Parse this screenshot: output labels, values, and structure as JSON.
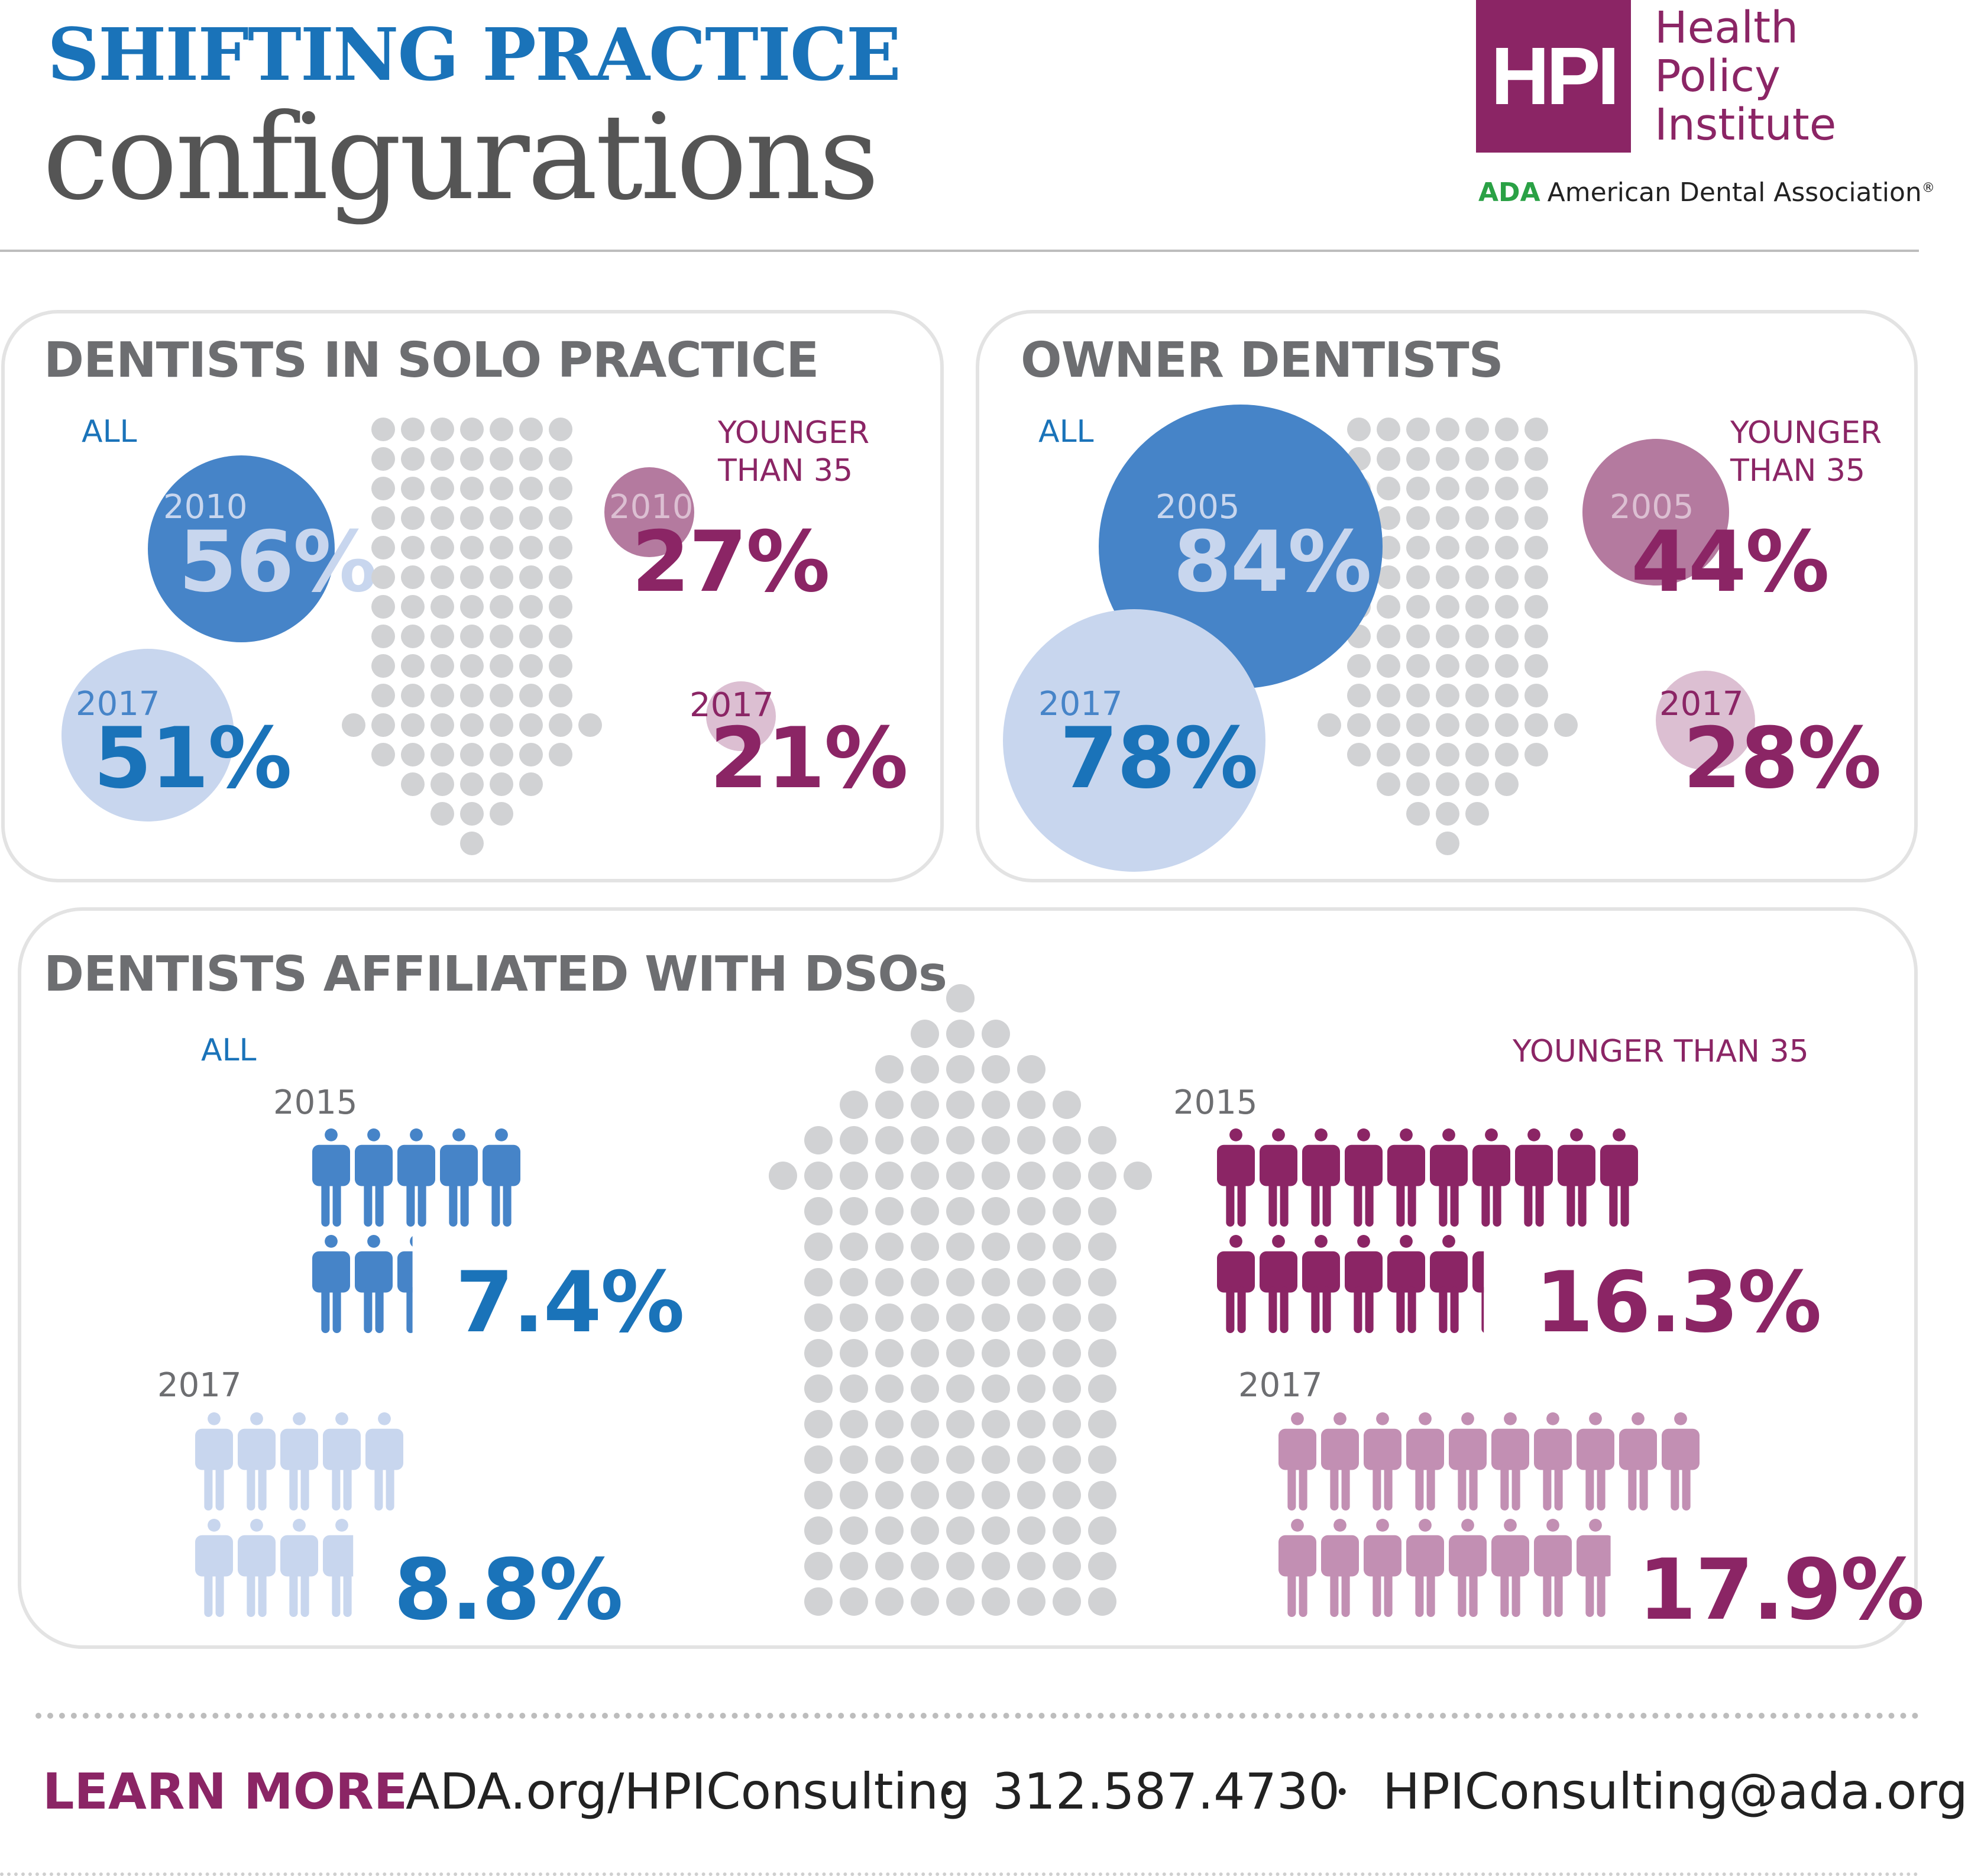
{
  "header": {
    "title_line1": "SHIFTING PRACTICE",
    "title_line2": "configurations",
    "logo": {
      "mark": "HPI",
      "name_lines": [
        "Health",
        "Policy",
        "Institute"
      ],
      "ada_mark": "ADA",
      "ada_name": "American Dental Association",
      "registered": "®"
    }
  },
  "colors": {
    "blue": "#1a73b9",
    "blue_dark": "#4684c8",
    "blue_light": "#c8d6ee",
    "purple": "#8b2565",
    "purple_mid": "#b47a9f",
    "purple_light": "#dcbfd2",
    "purple_icon_light": "#c28fb3",
    "grey_dot": "#d1d2d4"
  },
  "solo": {
    "title": "DENTISTS IN SOLO PRACTICE",
    "all_label": "ALL",
    "young_label_1": "YOUNGER",
    "young_label_2": "THAN 35",
    "all_a": {
      "year": "2010",
      "pct": "56%"
    },
    "all_b": {
      "year": "2017",
      "pct": "51%"
    },
    "young_a": {
      "year": "2010",
      "pct": "27%"
    },
    "young_b": {
      "year": "2017",
      "pct": "21%"
    }
  },
  "owner": {
    "title": "OWNER DENTISTS",
    "all_label": "ALL",
    "young_label_1": "YOUNGER",
    "young_label_2": "THAN 35",
    "all_a": {
      "year": "2005",
      "pct": "84%"
    },
    "all_b": {
      "year": "2017",
      "pct": "78%"
    },
    "young_a": {
      "year": "2005",
      "pct": "44%"
    },
    "young_b": {
      "year": "2017",
      "pct": "28%"
    }
  },
  "dso": {
    "title": "DENTISTS AFFILIATED WITH DSOs",
    "all_label": "ALL",
    "young_label": "YOUNGER THAN 35",
    "all_a": {
      "year": "2015",
      "pct": "7.4%",
      "icon_count": 7.4
    },
    "all_b": {
      "year": "2017",
      "pct": "8.8%",
      "icon_count": 8.8
    },
    "young_a": {
      "year": "2015",
      "pct": "16.3%",
      "icon_count": 16.3
    },
    "young_b": {
      "year": "2017",
      "pct": "17.9%",
      "icon_count": 17.9
    }
  },
  "footer": {
    "learn_more": "LEARN MORE",
    "url": "ADA.org/HPIConsulting",
    "sep": "•",
    "phone": "312.587.4730",
    "email": "HPIConsulting@ada.org"
  }
}
